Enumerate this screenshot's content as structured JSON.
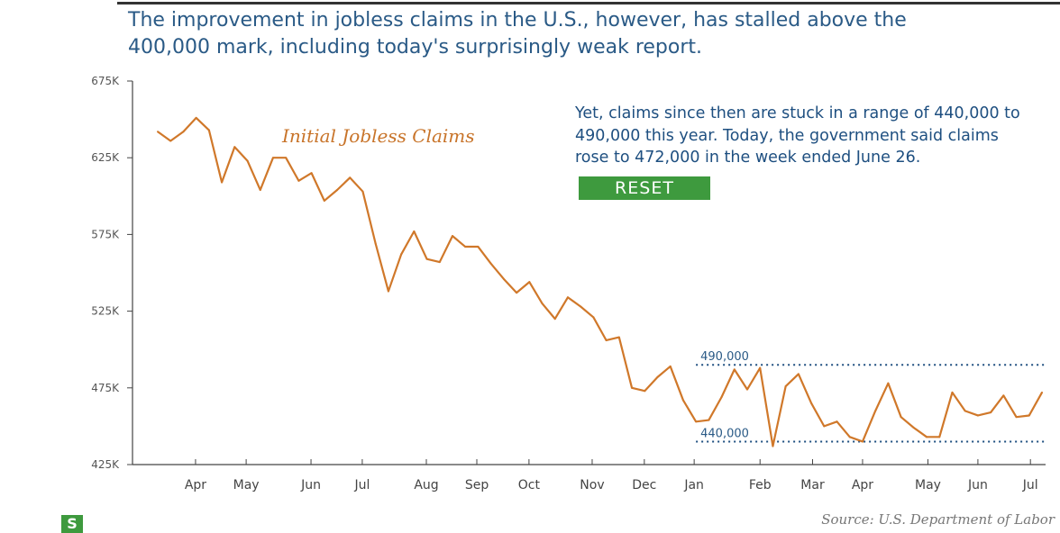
{
  "headline": "The improvement in jobless claims in the U.S., however, has stalled above the 400,000 mark, including today's surprisingly weak report.",
  "annotation": "Yet, claims since then are stuck in a range of 440,000 to 490,000 this year. Today, the government said claims rose to 472,000 in the week ended June 26.",
  "reset_label": "RESET",
  "source": "Source: U.S. Department of Labor",
  "logo_text": "S",
  "colors": {
    "line": "#d0782a",
    "text": "#2a5a86",
    "button": "#3e9a3e"
  },
  "chart_data": {
    "type": "line",
    "title": "",
    "series": [
      {
        "name": "Initial Jobless Claims",
        "unit": "thousands",
        "values": [
          642,
          636,
          642,
          651,
          643,
          609,
          632,
          623,
          604,
          625,
          625,
          610,
          615,
          597,
          604,
          612,
          603,
          569,
          538,
          562,
          577,
          559,
          557,
          574,
          567,
          567,
          556,
          546,
          537,
          544,
          530,
          520,
          534,
          528,
          521,
          506,
          508,
          475,
          473,
          482,
          489,
          467,
          453,
          454,
          469,
          487,
          474,
          488,
          437,
          476,
          484,
          465,
          450,
          453,
          443,
          440,
          460,
          478,
          456,
          449,
          443,
          443,
          472,
          460,
          457,
          459,
          470,
          456,
          457,
          472
        ]
      }
    ],
    "ylim": [
      425,
      675
    ],
    "yticks": [
      {
        "v": 675,
        "label": "675K"
      },
      {
        "v": 625,
        "label": "625K"
      },
      {
        "v": 575,
        "label": "575K"
      },
      {
        "v": 525,
        "label": "525K"
      },
      {
        "v": 475,
        "label": "475K"
      },
      {
        "v": 425,
        "label": "425K"
      }
    ],
    "xticks": [
      {
        "i": 2.95,
        "label": "Apr"
      },
      {
        "i": 6.9,
        "label": "May"
      },
      {
        "i": 11.96,
        "label": "Jun"
      },
      {
        "i": 15.96,
        "label": "Jul"
      },
      {
        "i": 20.96,
        "label": "Aug"
      },
      {
        "i": 24.9,
        "label": "Sep"
      },
      {
        "i": 28.97,
        "label": "Oct"
      },
      {
        "i": 33.9,
        "label": "Nov"
      },
      {
        "i": 37.97,
        "label": "Dec"
      },
      {
        "i": 41.86,
        "label": "Jan"
      },
      {
        "i": 47,
        "label": "Feb"
      },
      {
        "i": 51.1,
        "label": "Mar"
      },
      {
        "i": 55,
        "label": "Apr"
      },
      {
        "i": 60.1,
        "label": "May"
      },
      {
        "i": 64,
        "label": "Jun"
      },
      {
        "i": 68.1,
        "label": "Jul"
      }
    ],
    "reference_lines": [
      {
        "v": 490,
        "label": "490,000",
        "from_index": 42
      },
      {
        "v": 440,
        "label": "440,000",
        "from_index": 42
      }
    ],
    "grid": false,
    "legend": "inline top-center"
  }
}
